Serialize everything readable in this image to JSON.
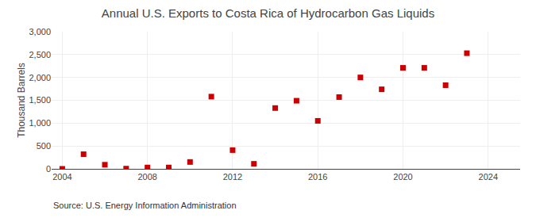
{
  "chart_data": {
    "type": "scatter",
    "title": "Annual U.S. Exports to Costa Rica of Hydrocarbon Gas Liquids",
    "ylabel": "Thousand Barrels",
    "annotations": [
      "Source: U.S. Energy Information Administration"
    ],
    "x": [
      2004,
      2005,
      2006,
      2007,
      2008,
      2009,
      2010,
      2011,
      2012,
      2013,
      2014,
      2015,
      2016,
      2017,
      2018,
      2019,
      2020,
      2021,
      2022,
      2023,
      2024
    ],
    "values": [
      0,
      320,
      90,
      5,
      30,
      30,
      150,
      1580,
      410,
      110,
      1330,
      1490,
      1050,
      1570,
      2000,
      1740,
      2210,
      2210,
      1830,
      2530,
      null
    ],
    "color": "#cc0000",
    "marker": "square",
    "xlim": [
      2003.5,
      2025.5
    ],
    "xticks": [
      2004,
      2008,
      2012,
      2016,
      2020,
      2024
    ],
    "ylim": [
      0,
      3000
    ],
    "yticks": [
      0,
      500,
      {
        "value": 1000,
        "label": "1,000"
      },
      {
        "value": 1500,
        "label": "1,500"
      },
      {
        "value": 2000,
        "label": "2,000"
      },
      {
        "value": 2500,
        "label": "2,500"
      },
      {
        "value": 3000,
        "label": "3,000"
      }
    ],
    "grid": true
  }
}
